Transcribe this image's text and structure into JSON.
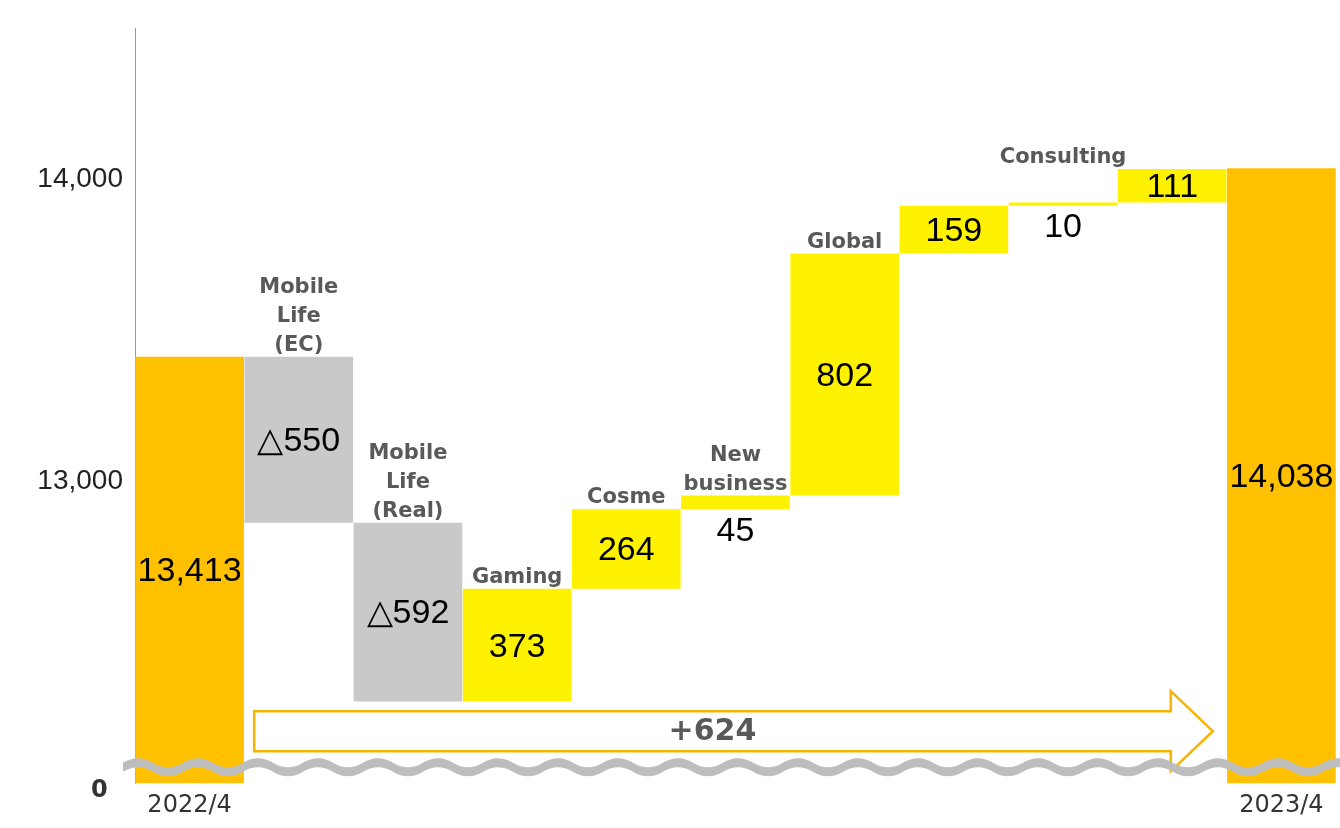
{
  "chart_data": {
    "type": "bar",
    "categories": [
      "2022/4",
      "Mobile Life (EC)",
      "Mobile Life (Real)",
      "Gaming",
      "Cosme",
      "New business",
      "Global",
      null,
      "Consulting",
      null,
      "2023/4"
    ],
    "values": [
      13413,
      -550,
      -592,
      373,
      264,
      45,
      802,
      159,
      10,
      111,
      14038
    ],
    "base": [
      0,
      13413,
      12863,
      12271,
      12644,
      12908,
      12953,
      13755,
      13914,
      13924,
      0
    ],
    "colors": [
      "#ffc000",
      "#c9c9c9",
      "#c9c9c9",
      "#fff200",
      "#fff200",
      "#fff200",
      "#fff200",
      "#fff200",
      "#fff200",
      "#fff200",
      "#ffc000"
    ],
    "value_labels": [
      "13,413",
      "△550",
      "△592",
      "373",
      "264",
      "45",
      "802",
      "159",
      "10",
      "111",
      "14,038"
    ],
    "ylim": [
      12000,
      14500
    ],
    "yticks": [
      {
        "value": 13000,
        "label": "13,000"
      },
      {
        "value": 14000,
        "label": "14,000"
      }
    ],
    "grid": false,
    "legend": false,
    "annotations": [
      "+624",
      "0"
    ]
  }
}
